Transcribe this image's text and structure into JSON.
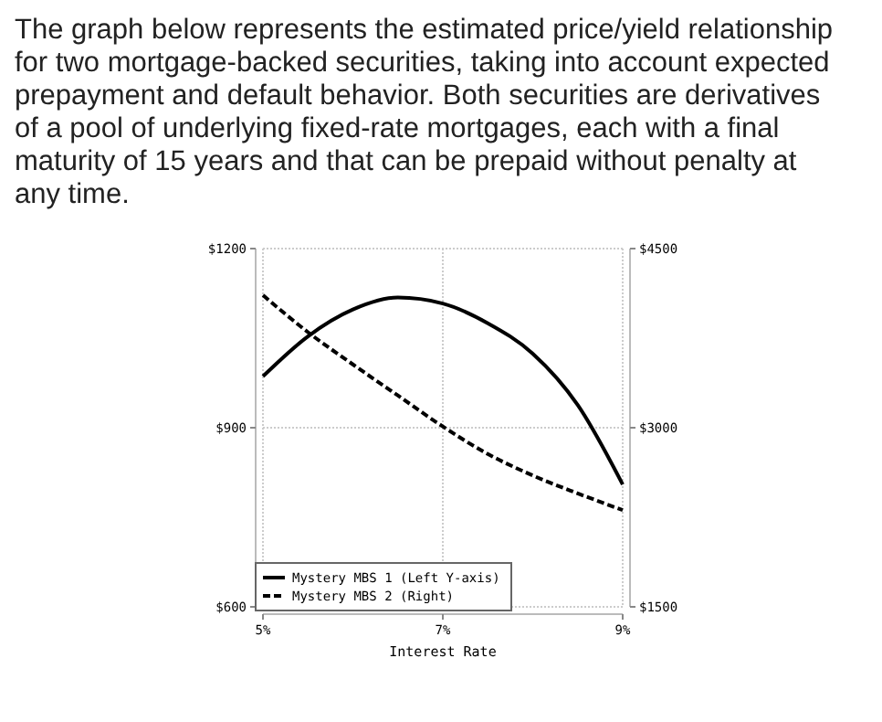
{
  "chart_data": {
    "type": "line",
    "title": "The graph below represents the estimated price/yield relationship for two mortgage-backed securities, taking into account expected prepayment and default behavior. Both securities are derivatives of a pool of underlying fixed-rate mortgages, each with a final maturity of 15 years and that can be prepaid without penalty at any time.",
    "xlabel": "Interest Rate",
    "x": [
      5,
      5.5,
      6,
      6.5,
      7,
      7.5,
      8,
      8.5,
      9
    ],
    "series": [
      {
        "name": "Mystery MBS 1 (Left Y-axis)",
        "color": "#000000",
        "line_style": "solid",
        "values": [
          986,
          1053,
          1098,
          1118,
          1108,
          1075,
          1024,
          938,
          805
        ]
      },
      {
        "name": "Mystery MBS 2 (Right)",
        "color": "#000000",
        "line_style": "dashed",
        "axis": "y2",
        "values": [
          4110,
          3800,
          3530,
          3270,
          3010,
          2780,
          2600,
          2450,
          2310
        ]
      }
    ],
    "xlim": [
      5,
      9
    ],
    "xticks": [
      {
        "value": 5,
        "label": "5%"
      },
      {
        "value": 7,
        "label": "7%"
      },
      {
        "value": 9,
        "label": "9%"
      }
    ],
    "ylim": [
      600,
      1200
    ],
    "yticks": [
      {
        "value": 600,
        "label": "$600"
      },
      {
        "value": 900,
        "label": "$900"
      },
      {
        "value": 1200,
        "label": "$1200"
      }
    ],
    "y2lim": [
      1500,
      4500
    ],
    "y2ticks": [
      {
        "value": 1500,
        "label": "$1500"
      },
      {
        "value": 3000,
        "label": "$3000"
      },
      {
        "value": 4500,
        "label": "$4500"
      }
    ],
    "grid": true,
    "legend": "bottom left"
  }
}
